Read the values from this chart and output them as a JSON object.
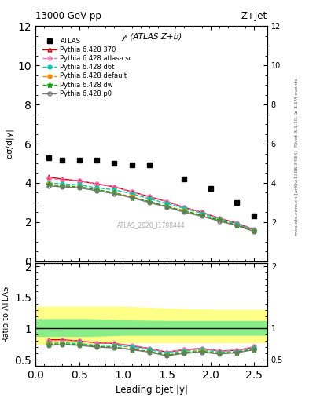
{
  "title_top": "13000 GeV pp",
  "title_right": "Z+Jet",
  "ylabel_main": "dσ/d|y|",
  "ylabel_ratio": "Ratio to ATLAS",
  "xlabel": "Leading bjet |y|",
  "annotation_center": "yʲ (ATLAS Z+b)",
  "annotation_bottom": "ATLAS_2020_I1788444",
  "right_label": "Rivet 3.1.10, ≥ 3.1M events",
  "right_label2": "mcplots.cern.ch [arXiv:1306.3436]",
  "atlas_x": [
    0.15,
    0.3,
    0.5,
    0.7,
    0.9,
    1.1,
    1.3,
    1.7,
    2.0,
    2.3,
    2.5
  ],
  "atlas_y": [
    5.3,
    5.15,
    5.15,
    5.15,
    5.0,
    4.9,
    4.9,
    4.2,
    3.7,
    3.0,
    2.3
  ],
  "py_x": [
    0.15,
    0.3,
    0.5,
    0.7,
    0.9,
    1.1,
    1.3,
    1.5,
    1.7,
    1.9,
    2.1,
    2.3,
    2.5
  ],
  "py370_y": [
    4.3,
    4.2,
    4.1,
    3.95,
    3.8,
    3.55,
    3.3,
    3.05,
    2.75,
    2.5,
    2.2,
    1.95,
    1.6
  ],
  "py_atlascsc_y": [
    4.25,
    4.15,
    4.1,
    3.95,
    3.8,
    3.55,
    3.3,
    3.05,
    2.75,
    2.5,
    2.2,
    1.95,
    1.65
  ],
  "py_d6t_y": [
    4.0,
    3.95,
    3.9,
    3.75,
    3.65,
    3.45,
    3.2,
    2.95,
    2.7,
    2.45,
    2.15,
    1.9,
    1.6
  ],
  "py_default_y": [
    3.95,
    3.85,
    3.8,
    3.65,
    3.5,
    3.3,
    3.05,
    2.8,
    2.6,
    2.35,
    2.1,
    1.85,
    1.55
  ],
  "py_dw_y": [
    3.9,
    3.85,
    3.8,
    3.65,
    3.5,
    3.25,
    3.05,
    2.8,
    2.55,
    2.35,
    2.1,
    1.85,
    1.55
  ],
  "py_p0_y": [
    3.85,
    3.8,
    3.75,
    3.6,
    3.45,
    3.25,
    3.0,
    2.77,
    2.5,
    2.3,
    2.05,
    1.82,
    1.52
  ],
  "ratio_x": [
    0.15,
    0.3,
    0.5,
    0.7,
    0.9,
    1.1,
    1.3,
    1.5,
    1.7,
    1.9,
    2.1,
    2.3,
    2.5
  ],
  "ratio_370": [
    0.82,
    0.82,
    0.8,
    0.77,
    0.76,
    0.72,
    0.68,
    0.62,
    0.66,
    0.68,
    0.64,
    0.65,
    0.7
  ],
  "ratio_atlascsc": [
    0.8,
    0.81,
    0.8,
    0.77,
    0.76,
    0.73,
    0.68,
    0.62,
    0.66,
    0.68,
    0.64,
    0.65,
    0.71
  ],
  "ratio_d6t": [
    0.76,
    0.77,
    0.76,
    0.73,
    0.73,
    0.7,
    0.66,
    0.6,
    0.64,
    0.66,
    0.62,
    0.63,
    0.69
  ],
  "ratio_default": [
    0.75,
    0.75,
    0.74,
    0.71,
    0.7,
    0.67,
    0.63,
    0.57,
    0.62,
    0.64,
    0.6,
    0.62,
    0.67
  ],
  "ratio_dw": [
    0.74,
    0.75,
    0.74,
    0.71,
    0.7,
    0.66,
    0.63,
    0.57,
    0.61,
    0.63,
    0.6,
    0.62,
    0.67
  ],
  "ratio_p0": [
    0.73,
    0.74,
    0.73,
    0.7,
    0.69,
    0.66,
    0.62,
    0.56,
    0.6,
    0.62,
    0.59,
    0.61,
    0.66
  ],
  "band_x": [
    0.0,
    0.6,
    1.0,
    1.5,
    2.0,
    2.65
  ],
  "band_yellow_lo": [
    0.75,
    0.75,
    0.78,
    0.78,
    0.78,
    0.78
  ],
  "band_yellow_hi": [
    1.35,
    1.35,
    1.35,
    1.32,
    1.3,
    1.3
  ],
  "band_green_lo": [
    0.88,
    0.88,
    0.9,
    0.9,
    0.9,
    0.9
  ],
  "band_green_hi": [
    1.15,
    1.15,
    1.13,
    1.12,
    1.12,
    1.12
  ],
  "ylim_main": [
    0,
    12
  ],
  "xlim": [
    0,
    2.65
  ],
  "ylim_ratio": [
    0.4,
    2.05
  ],
  "colors": {
    "370": "#cc0000",
    "atlascsc": "#ff69b4",
    "d6t": "#00ccaa",
    "default": "#ff8800",
    "dw": "#00aa00",
    "p0": "#777777"
  },
  "bg_color": "#ffffff"
}
